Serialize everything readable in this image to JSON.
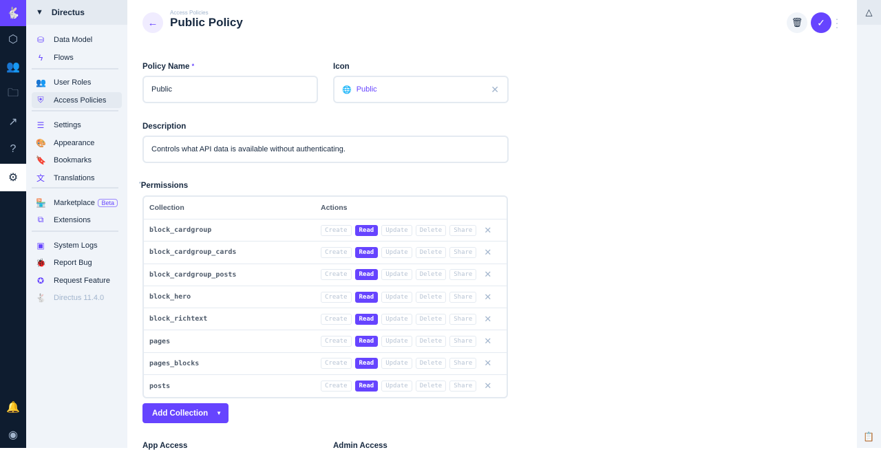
{
  "rail": {
    "items": [
      "data-studio-content",
      "users",
      "files",
      "insights",
      "help",
      "settings"
    ]
  },
  "nav": {
    "project": "Directus",
    "items": [
      {
        "label": "Data Model",
        "icon": "database-icon"
      },
      {
        "label": "Flows",
        "icon": "bolt-icon"
      },
      {
        "label": "User Roles",
        "icon": "group-icon"
      },
      {
        "label": "Access Policies",
        "icon": "policy-icon",
        "active": true
      },
      {
        "label": "Settings",
        "icon": "tune-icon"
      },
      {
        "label": "Appearance",
        "icon": "palette-icon"
      },
      {
        "label": "Bookmarks",
        "icon": "bookmark-icon"
      },
      {
        "label": "Translations",
        "icon": "translate-icon"
      },
      {
        "label": "Marketplace",
        "icon": "storefront-icon",
        "badge": "Beta"
      },
      {
        "label": "Extensions",
        "icon": "extension-icon"
      },
      {
        "label": "System Logs",
        "icon": "terminal-icon"
      },
      {
        "label": "Report Bug",
        "icon": "bug-icon"
      },
      {
        "label": "Request Feature",
        "icon": "verified-icon"
      },
      {
        "label": "Directus 11.4.0",
        "icon": "directus-rabbit-icon"
      }
    ]
  },
  "header": {
    "breadcrumb": "Access Policies",
    "title": "Public Policy"
  },
  "form": {
    "policy_name_label": "Policy Name",
    "policy_name_value": "Public",
    "required_mark": "*",
    "icon_label": "Icon",
    "icon_value": "Public",
    "description_label": "Description",
    "description_value": "Controls what API data is available without authenticating.",
    "permissions_label": "Permissions",
    "app_access_label": "App Access",
    "admin_access_label": "Admin Access"
  },
  "permissions": {
    "headers": {
      "collection": "Collection",
      "actions": "Actions"
    },
    "actions": [
      "Create",
      "Read",
      "Update",
      "Delete",
      "Share"
    ],
    "rows": [
      {
        "collection": "block_cardgroup",
        "enabled": [
          "Read"
        ]
      },
      {
        "collection": "block_cardgroup_cards",
        "enabled": [
          "Read"
        ]
      },
      {
        "collection": "block_cardgroup_posts",
        "enabled": [
          "Read"
        ]
      },
      {
        "collection": "block_hero",
        "enabled": [
          "Read"
        ]
      },
      {
        "collection": "block_richtext",
        "enabled": [
          "Read"
        ]
      },
      {
        "collection": "pages",
        "enabled": [
          "Read"
        ]
      },
      {
        "collection": "pages_blocks",
        "enabled": [
          "Read"
        ]
      },
      {
        "collection": "posts",
        "enabled": [
          "Read"
        ]
      }
    ],
    "add_label": "Add Collection"
  },
  "colors": {
    "accent": "#6644ff",
    "rail": "#0e1c2f",
    "nav_bg": "#f0f4f9"
  }
}
